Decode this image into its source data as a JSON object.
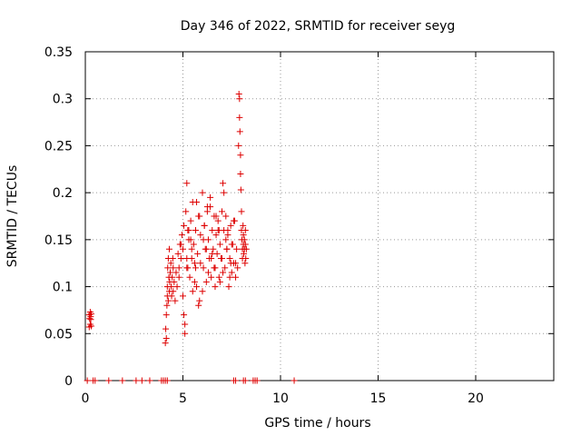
{
  "chart_data": {
    "type": "scatter",
    "title": "Day 346 of 2022, SRMTID for receiver seyg",
    "xlabel": "GPS time / hours",
    "ylabel": "SRMTID / TECUs",
    "xlim": [
      0,
      24
    ],
    "ylim": [
      0,
      0.35
    ],
    "xticks": [
      0,
      5,
      10,
      15,
      20
    ],
    "xtick_labels": [
      "0",
      "5",
      "10",
      "15",
      "20"
    ],
    "yticks": [
      0,
      0.05,
      0.1,
      0.15,
      0.2,
      0.25,
      0.3,
      0.35
    ],
    "ytick_labels": [
      "0",
      "0.05",
      "0.1",
      "0.15",
      "0.2",
      "0.25",
      "0.3",
      "0.35"
    ],
    "grid": true,
    "marker": "+",
    "marker_color": "#dd0000",
    "series": [
      {
        "name": "SRMTID",
        "x": [
          0.2,
          0.2,
          0.22,
          0.25,
          0.25,
          0.27,
          0.28,
          0.3,
          0.3,
          4.1,
          4.12,
          4.15,
          4.15,
          4.18,
          4.2,
          4.2,
          4.22,
          4.25,
          4.25,
          4.28,
          4.3,
          4.3,
          4.32,
          4.35,
          4.38,
          4.4,
          4.42,
          4.45,
          4.48,
          4.5,
          4.5,
          4.55,
          4.6,
          4.65,
          4.7,
          4.75,
          4.8,
          4.85,
          4.9,
          4.95,
          5.0,
          5.05,
          5.1,
          5.15,
          5.2,
          5.2,
          5.25,
          5.3,
          5.35,
          5.4,
          5.45,
          5.5,
          5.55,
          5.6,
          5.65,
          5.7,
          5.75,
          5.8,
          5.85,
          5.9,
          6.0,
          6.05,
          6.1,
          6.15,
          6.2,
          6.25,
          6.3,
          6.35,
          6.4,
          6.45,
          6.5,
          6.55,
          6.6,
          6.65,
          6.7,
          6.75,
          6.8,
          6.85,
          6.9,
          6.95,
          7.0,
          7.05,
          7.1,
          7.15,
          7.2,
          7.25,
          7.3,
          7.35,
          7.4,
          7.45,
          7.5,
          7.55,
          7.6,
          7.65,
          7.7,
          7.75,
          7.8,
          7.85,
          7.87,
          7.9,
          7.9,
          7.92,
          7.95,
          7.95,
          7.97,
          8.0,
          8.0,
          8.02,
          8.05,
          8.05,
          8.08,
          8.1,
          8.1,
          8.12,
          8.15,
          8.15,
          8.18,
          8.2,
          8.2,
          8.22,
          8.25,
          4.8,
          5.0,
          5.2,
          5.4,
          5.6,
          5.8,
          6.0,
          6.2,
          6.4,
          6.6,
          6.8,
          7.0,
          7.2,
          7.4,
          7.6,
          4.9,
          5.1,
          5.3,
          5.5,
          5.7,
          5.9,
          6.1,
          6.3,
          6.5,
          6.7,
          6.9,
          7.1,
          7.3,
          7.5,
          7.7,
          5.05,
          5.25,
          5.45,
          5.65,
          5.85,
          6.05,
          6.25,
          6.45,
          6.65,
          6.85,
          7.05,
          7.25,
          7.45,
          0.1,
          0.4,
          0.5,
          1.2,
          1.9,
          2.6,
          2.9,
          3.3,
          3.9,
          4.0,
          4.1,
          4.2,
          7.6,
          7.7,
          8.1,
          8.2,
          8.6,
          8.7,
          8.8,
          10.7
        ],
        "y": [
          0.057,
          0.07,
          0.066,
          0.073,
          0.06,
          0.068,
          0.065,
          0.071,
          0.058,
          0.04,
          0.055,
          0.07,
          0.045,
          0.08,
          0.09,
          0.1,
          0.12,
          0.13,
          0.085,
          0.11,
          0.14,
          0.095,
          0.105,
          0.115,
          0.125,
          0.1,
          0.09,
          0.11,
          0.13,
          0.12,
          0.095,
          0.105,
          0.085,
          0.115,
          0.1,
          0.135,
          0.12,
          0.145,
          0.13,
          0.155,
          0.14,
          0.165,
          0.05,
          0.18,
          0.13,
          0.21,
          0.12,
          0.15,
          0.11,
          0.17,
          0.13,
          0.19,
          0.145,
          0.125,
          0.16,
          0.1,
          0.135,
          0.08,
          0.175,
          0.155,
          0.2,
          0.12,
          0.165,
          0.14,
          0.105,
          0.18,
          0.15,
          0.13,
          0.195,
          0.11,
          0.16,
          0.14,
          0.175,
          0.12,
          0.155,
          0.135,
          0.17,
          0.11,
          0.145,
          0.13,
          0.18,
          0.21,
          0.16,
          0.12,
          0.175,
          0.14,
          0.155,
          0.1,
          0.13,
          0.165,
          0.115,
          0.145,
          0.125,
          0.17,
          0.11,
          0.14,
          0.12,
          0.25,
          0.305,
          0.3,
          0.28,
          0.265,
          0.24,
          0.22,
          0.203,
          0.18,
          0.16,
          0.15,
          0.14,
          0.13,
          0.165,
          0.155,
          0.145,
          0.135,
          0.15,
          0.14,
          0.125,
          0.16,
          0.145,
          0.13,
          0.14,
          0.11,
          0.09,
          0.12,
          0.15,
          0.105,
          0.175,
          0.095,
          0.14,
          0.185,
          0.12,
          0.16,
          0.13,
          0.15,
          0.11,
          0.17,
          0.145,
          0.06,
          0.16,
          0.095,
          0.19,
          0.125,
          0.165,
          0.115,
          0.135,
          0.175,
          0.105,
          0.2,
          0.16,
          0.145,
          0.125,
          0.07,
          0.16,
          0.14,
          0.12,
          0.085,
          0.15,
          0.185,
          0.13,
          0.1,
          0.16,
          0.115,
          0.14,
          0.125,
          0,
          0,
          0,
          0,
          0,
          0,
          0,
          0,
          0,
          0,
          0,
          0,
          0,
          0,
          0,
          0,
          0,
          0,
          0,
          0
        ]
      }
    ]
  }
}
